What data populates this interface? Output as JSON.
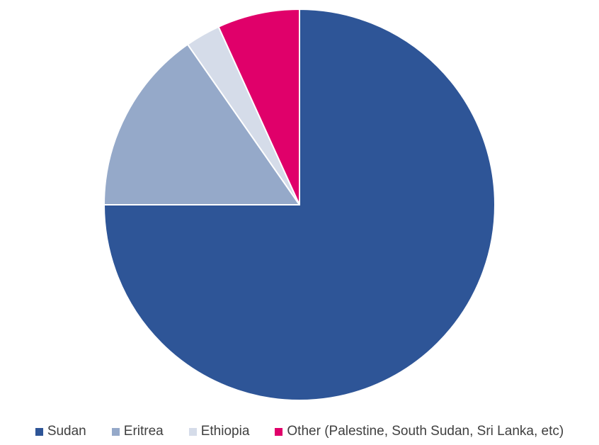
{
  "chart_data": {
    "type": "pie",
    "title": "",
    "slices": [
      {
        "label": "Sudan",
        "value": 75.0,
        "color": "#2e5597"
      },
      {
        "label": "Eritrea",
        "value": 15.3,
        "color": "#95a9c9"
      },
      {
        "label": "Ethiopia",
        "value": 2.9,
        "color": "#d5dce9"
      },
      {
        "label": "Other (Palestine, South Sudan, Sri Lanka, etc)",
        "value": 6.8,
        "color": "#e0006a"
      }
    ],
    "start_angle_deg": 0,
    "direction": "clockwise",
    "legend_position": "bottom"
  }
}
